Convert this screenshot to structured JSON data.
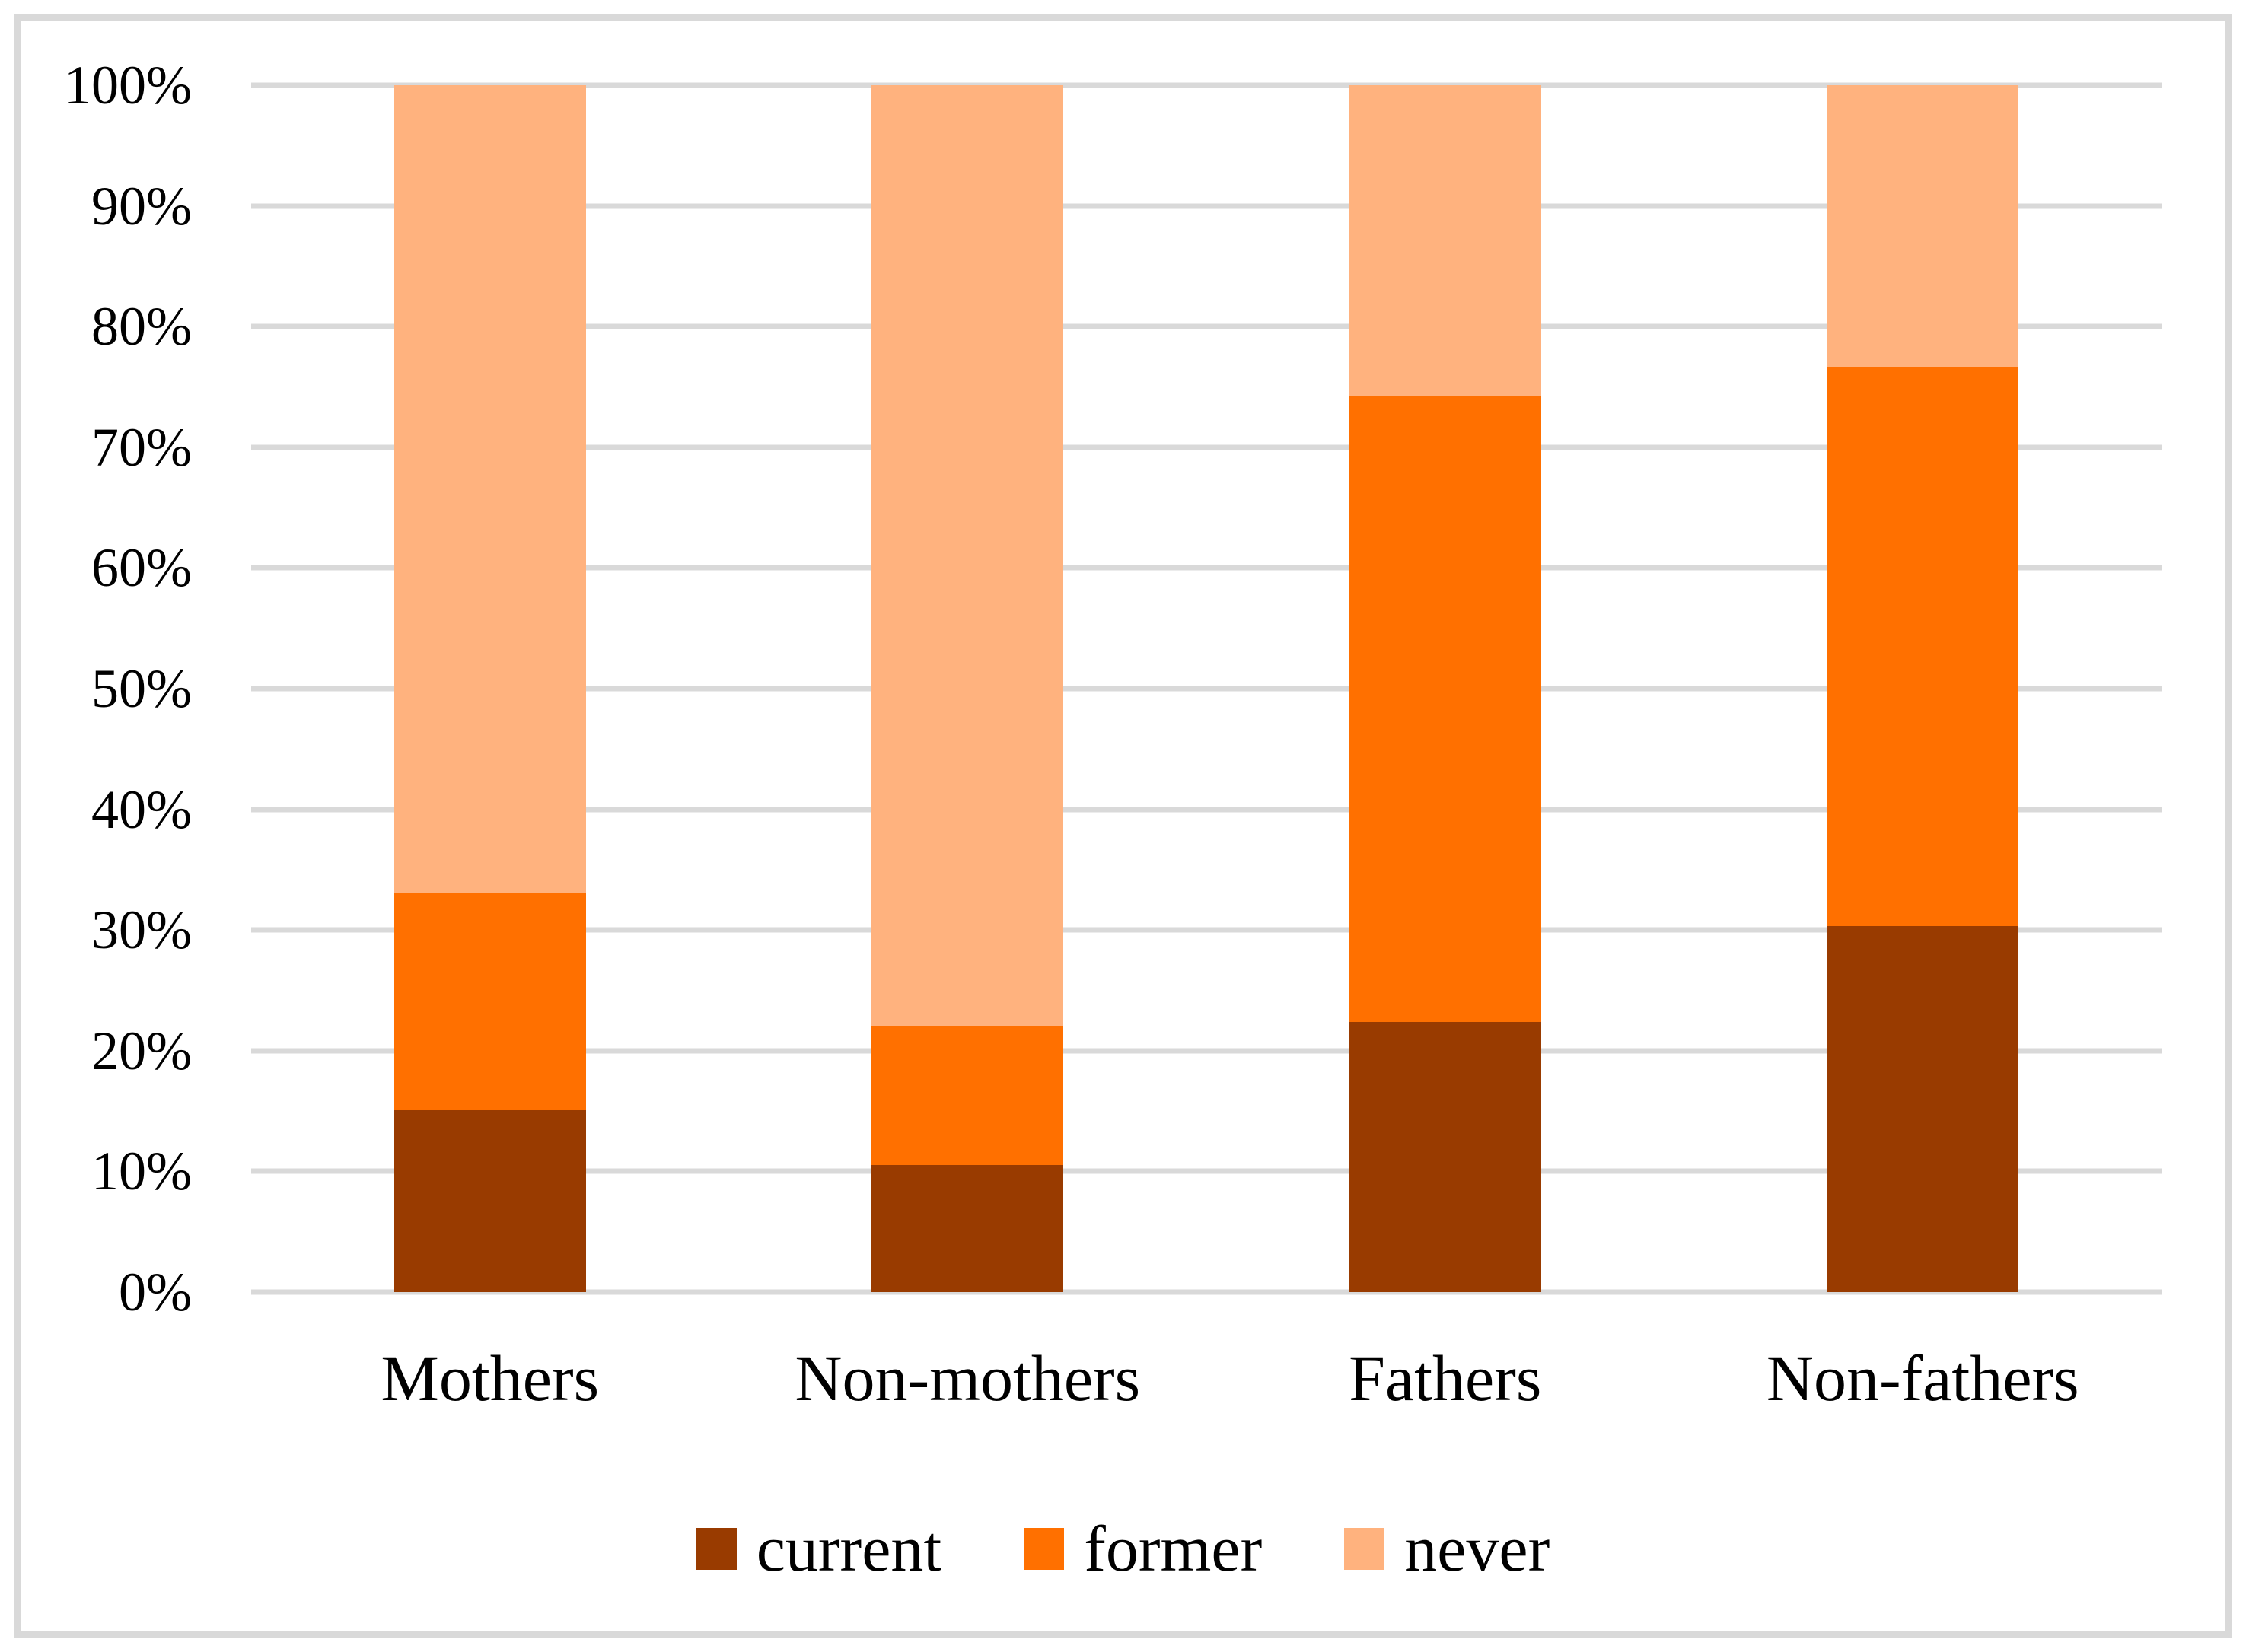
{
  "chart_data": {
    "type": "bar",
    "variant": "stacked-100-percent",
    "orientation": "vertical",
    "title": "",
    "xlabel": "",
    "ylabel": "",
    "categories": [
      "Mothers",
      "Non-mothers",
      "Fathers",
      "Non-fathers"
    ],
    "series": [
      {
        "name": "current",
        "color": "#993B00",
        "values": [
          15.1,
          10.5,
          22.4,
          30.3
        ]
      },
      {
        "name": "former",
        "color": "#FF7000",
        "values": [
          18.0,
          11.6,
          51.8,
          46.4
        ]
      },
      {
        "name": "never",
        "color": "#FFB27E",
        "values": [
          66.9,
          77.9,
          25.8,
          23.3
        ]
      }
    ],
    "stack_order_bottom_to_top": [
      "current",
      "former",
      "never"
    ],
    "ylim": [
      0,
      100
    ],
    "yticks": [
      0,
      10,
      20,
      30,
      40,
      50,
      60,
      70,
      80,
      90,
      100
    ],
    "ytick_labels": [
      "0%",
      "10%",
      "20%",
      "30%",
      "40%",
      "50%",
      "60%",
      "70%",
      "80%",
      "90%",
      "100%"
    ],
    "grid": true,
    "gridline_color": "#D9D9D9",
    "axis_line_color": "#D9D9D9",
    "frame_border_color": "#D9D9D9",
    "background_color": "#FFFFFF",
    "text_color": "#000000",
    "legend_position": "bottom",
    "legend_labels": [
      "current",
      "former",
      "never"
    ]
  }
}
